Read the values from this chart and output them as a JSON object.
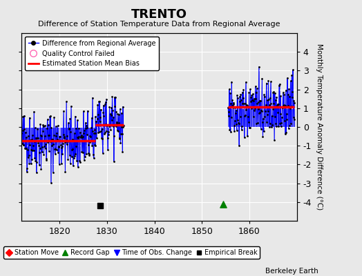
{
  "title": "TRENTO",
  "subtitle": "Difference of Station Temperature Data from Regional Average",
  "ylabel": "Monthly Temperature Anomaly Difference (°C)",
  "xlim": [
    1812,
    1870
  ],
  "ylim": [
    -5,
    5
  ],
  "xticks": [
    1820,
    1830,
    1840,
    1850,
    1860
  ],
  "yticks": [
    -4,
    -3,
    -2,
    -1,
    0,
    1,
    2,
    3,
    4
  ],
  "ytick_labels": [
    "-4",
    "-3",
    "-2",
    "-1",
    "0",
    "1",
    "2",
    "3",
    "4"
  ],
  "bg_color": "#e8e8e8",
  "plot_bg": "#e8e8e8",
  "grid_color": "white",
  "segment1_start": 1812.0,
  "segment1_end": 1827.5,
  "segment1_bias": -0.75,
  "segment2_start": 1827.5,
  "segment2_end": 1833.5,
  "segment2_bias": 0.1,
  "segment3_start": 1855.5,
  "segment3_end": 1869.5,
  "segment3_bias": 1.05,
  "empirical_break_x": 1828.5,
  "empirical_break_y": -4.2,
  "record_gap_x": 1854.5,
  "record_gap_y": -4.1,
  "seed": 42,
  "noise_std": 0.85,
  "berkeley_text": "Berkeley Earth"
}
